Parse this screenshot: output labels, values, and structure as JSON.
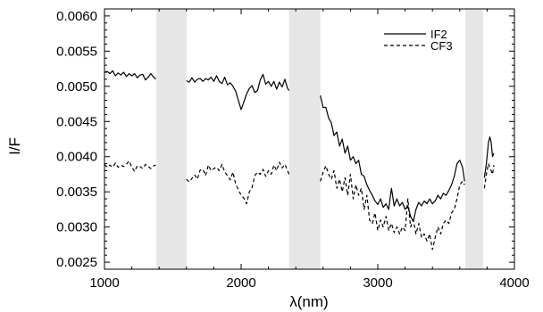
{
  "chart_data": {
    "type": "line",
    "title": "",
    "xlabel": "λ(nm)",
    "ylabel": "I/F",
    "xlim": [
      1000,
      4000
    ],
    "ylim": [
      0.0024,
      0.0061
    ],
    "xticks": [
      1000,
      2000,
      3000,
      4000
    ],
    "xtick_labels": [
      "1000",
      "2000",
      "3000",
      "4000"
    ],
    "yticks": [
      0.0025,
      0.003,
      0.0035,
      0.004,
      0.0045,
      0.005,
      0.0055,
      0.006
    ],
    "ytick_labels": [
      "0.0025",
      "0.0030",
      "0.0035",
      "0.0040",
      "0.0045",
      "0.0050",
      "0.0055",
      "0.0060"
    ],
    "grid": false,
    "legend_position": "top-right",
    "masked_bands": [
      [
        1380,
        1600
      ],
      [
        2350,
        2580
      ],
      [
        3640,
        3770
      ]
    ],
    "series": [
      {
        "name": "IF2",
        "style": "solid",
        "color": "#000000",
        "segments": [
          [
            [
              1000,
              0.0052
            ],
            [
              1020,
              0.00521
            ],
            [
              1040,
              0.00518
            ],
            [
              1060,
              0.00522
            ],
            [
              1080,
              0.00515
            ],
            [
              1100,
              0.00519
            ],
            [
              1120,
              0.00516
            ],
            [
              1140,
              0.0052
            ],
            [
              1160,
              0.00514
            ],
            [
              1180,
              0.00518
            ],
            [
              1200,
              0.00515
            ],
            [
              1220,
              0.00518
            ],
            [
              1240,
              0.00512
            ],
            [
              1260,
              0.00516
            ],
            [
              1280,
              0.00517
            ],
            [
              1300,
              0.00509
            ],
            [
              1320,
              0.00513
            ],
            [
              1340,
              0.00518
            ],
            [
              1360,
              0.00513
            ],
            [
              1375,
              0.0051
            ]
          ],
          [
            [
              1600,
              0.00508
            ],
            [
              1620,
              0.00506
            ],
            [
              1640,
              0.00512
            ],
            [
              1660,
              0.00506
            ],
            [
              1680,
              0.0051
            ],
            [
              1700,
              0.00511
            ],
            [
              1720,
              0.00507
            ],
            [
              1740,
              0.00511
            ],
            [
              1760,
              0.00509
            ],
            [
              1780,
              0.00513
            ],
            [
              1800,
              0.00507
            ],
            [
              1820,
              0.00515
            ],
            [
              1840,
              0.00507
            ],
            [
              1860,
              0.00504
            ],
            [
              1880,
              0.00513
            ],
            [
              1900,
              0.00502
            ],
            [
              1920,
              0.00505
            ],
            [
              1940,
              0.005
            ],
            [
              1960,
              0.00493
            ],
            [
              1980,
              0.0048
            ],
            [
              2000,
              0.00467
            ],
            [
              2020,
              0.00478
            ],
            [
              2040,
              0.00489
            ],
            [
              2060,
              0.00497
            ],
            [
              2080,
              0.00501
            ],
            [
              2100,
              0.00491
            ],
            [
              2120,
              0.00494
            ],
            [
              2140,
              0.00509
            ],
            [
              2160,
              0.00517
            ],
            [
              2180,
              0.00503
            ],
            [
              2200,
              0.00507
            ],
            [
              2220,
              0.005
            ],
            [
              2240,
              0.00507
            ],
            [
              2260,
              0.00496
            ],
            [
              2280,
              0.00506
            ],
            [
              2300,
              0.00499
            ],
            [
              2320,
              0.0051
            ],
            [
              2340,
              0.00497
            ],
            [
              2350,
              0.00494
            ]
          ],
          [
            [
              2580,
              0.00487
            ],
            [
              2600,
              0.0047
            ],
            [
              2620,
              0.0047
            ],
            [
              2640,
              0.00455
            ],
            [
              2660,
              0.00448
            ],
            [
              2680,
              0.0043
            ],
            [
              2700,
              0.00435
            ],
            [
              2720,
              0.00415
            ],
            [
              2740,
              0.00425
            ],
            [
              2760,
              0.00405
            ],
            [
              2780,
              0.00415
            ],
            [
              2800,
              0.00395
            ],
            [
              2820,
              0.004
            ],
            [
              2840,
              0.0039
            ],
            [
              2860,
              0.00395
            ],
            [
              2880,
              0.00375
            ],
            [
              2900,
              0.00372
            ],
            [
              2920,
              0.0036
            ],
            [
              2940,
              0.00352
            ],
            [
              2960,
              0.00345
            ],
            [
              2980,
              0.00337
            ],
            [
              3000,
              0.00332
            ],
            [
              3020,
              0.0034
            ],
            [
              3040,
              0.00328
            ],
            [
              3060,
              0.00333
            ],
            [
              3080,
              0.00325
            ],
            [
              3100,
              0.00355
            ],
            [
              3120,
              0.0033
            ],
            [
              3140,
              0.0034
            ],
            [
              3160,
              0.0033
            ],
            [
              3180,
              0.00335
            ],
            [
              3200,
              0.00325
            ],
            [
              3220,
              0.0033
            ],
            [
              3240,
              0.00315
            ],
            [
              3260,
              0.00308
            ],
            [
              3280,
              0.00325
            ],
            [
              3300,
              0.00335
            ],
            [
              3320,
              0.0033
            ],
            [
              3340,
              0.00337
            ],
            [
              3360,
              0.00333
            ],
            [
              3380,
              0.0034
            ],
            [
              3400,
              0.00333
            ],
            [
              3420,
              0.00337
            ],
            [
              3440,
              0.00345
            ],
            [
              3460,
              0.0034
            ],
            [
              3480,
              0.00348
            ],
            [
              3500,
              0.00345
            ],
            [
              3520,
              0.00352
            ],
            [
              3540,
              0.0036
            ],
            [
              3560,
              0.00372
            ],
            [
              3580,
              0.0039
            ],
            [
              3600,
              0.00395
            ],
            [
              3620,
              0.00385
            ],
            [
              3635,
              0.00365
            ]
          ],
          [
            [
              3780,
              0.0037
            ],
            [
              3795,
              0.0039
            ],
            [
              3810,
              0.0042
            ],
            [
              3820,
              0.00428
            ],
            [
              3830,
              0.0042
            ],
            [
              3840,
              0.004
            ],
            [
              3850,
              0.00405
            ]
          ]
        ]
      },
      {
        "name": "CF3",
        "style": "dashed",
        "color": "#000000",
        "segments": [
          [
            [
              1000,
              0.00389
            ],
            [
              1020,
              0.00385
            ],
            [
              1040,
              0.00388
            ],
            [
              1060,
              0.00385
            ],
            [
              1080,
              0.00391
            ],
            [
              1100,
              0.00385
            ],
            [
              1120,
              0.00388
            ],
            [
              1140,
              0.00386
            ],
            [
              1160,
              0.00389
            ],
            [
              1180,
              0.00394
            ],
            [
              1200,
              0.00385
            ],
            [
              1220,
              0.00379
            ],
            [
              1240,
              0.00387
            ],
            [
              1260,
              0.00386
            ],
            [
              1280,
              0.00383
            ],
            [
              1300,
              0.00389
            ],
            [
              1320,
              0.00386
            ],
            [
              1340,
              0.00383
            ],
            [
              1360,
              0.00387
            ],
            [
              1375,
              0.00388
            ]
          ],
          [
            [
              1600,
              0.00368
            ],
            [
              1620,
              0.00364
            ],
            [
              1640,
              0.00369
            ],
            [
              1660,
              0.00374
            ],
            [
              1680,
              0.00368
            ],
            [
              1700,
              0.00381
            ],
            [
              1720,
              0.00382
            ],
            [
              1740,
              0.00373
            ],
            [
              1760,
              0.00388
            ],
            [
              1780,
              0.0038
            ],
            [
              1800,
              0.00383
            ],
            [
              1820,
              0.00385
            ],
            [
              1840,
              0.0038
            ],
            [
              1860,
              0.00389
            ],
            [
              1880,
              0.00378
            ],
            [
              1900,
              0.00373
            ],
            [
              1920,
              0.00367
            ],
            [
              1940,
              0.00378
            ],
            [
              1960,
              0.00361
            ],
            [
              1980,
              0.00353
            ],
            [
              2000,
              0.00345
            ],
            [
              2020,
              0.00341
            ],
            [
              2040,
              0.00333
            ],
            [
              2060,
              0.0035
            ],
            [
              2080,
              0.00356
            ],
            [
              2100,
              0.00373
            ],
            [
              2120,
              0.00378
            ],
            [
              2140,
              0.00375
            ],
            [
              2160,
              0.00382
            ],
            [
              2180,
              0.00372
            ],
            [
              2200,
              0.0038
            ],
            [
              2220,
              0.00375
            ],
            [
              2240,
              0.00388
            ],
            [
              2260,
              0.0038
            ],
            [
              2280,
              0.00392
            ],
            [
              2300,
              0.00384
            ],
            [
              2320,
              0.00389
            ],
            [
              2340,
              0.0038
            ],
            [
              2350,
              0.00375
            ]
          ],
          [
            [
              2580,
              0.00365
            ],
            [
              2600,
              0.00378
            ],
            [
              2620,
              0.00387
            ],
            [
              2640,
              0.00375
            ],
            [
              2660,
              0.00368
            ],
            [
              2680,
              0.0038
            ],
            [
              2700,
              0.00355
            ],
            [
              2720,
              0.00368
            ],
            [
              2740,
              0.0035
            ],
            [
              2760,
              0.0037
            ],
            [
              2780,
              0.00345
            ],
            [
              2800,
              0.00375
            ],
            [
              2820,
              0.0034
            ],
            [
              2840,
              0.0036
            ],
            [
              2860,
              0.00345
            ],
            [
              2880,
              0.00355
            ],
            [
              2900,
              0.00325
            ],
            [
              2920,
              0.00345
            ],
            [
              2940,
              0.0031
            ],
            [
              2960,
              0.00305
            ],
            [
              2980,
              0.0032
            ],
            [
              3000,
              0.00295
            ],
            [
              3020,
              0.0031
            ],
            [
              3040,
              0.003
            ],
            [
              3060,
              0.00315
            ],
            [
              3080,
              0.00295
            ],
            [
              3100,
              0.00305
            ],
            [
              3120,
              0.00292
            ],
            [
              3140,
              0.003
            ],
            [
              3160,
              0.0029
            ],
            [
              3180,
              0.003
            ],
            [
              3200,
              0.00295
            ],
            [
              3220,
              0.0034
            ],
            [
              3240,
              0.003
            ],
            [
              3260,
              0.0031
            ],
            [
              3280,
              0.0029
            ],
            [
              3300,
              0.00305
            ],
            [
              3320,
              0.00285
            ],
            [
              3340,
              0.0029
            ],
            [
              3360,
              0.0028
            ],
            [
              3380,
              0.0029
            ],
            [
              3400,
              0.00268
            ],
            [
              3420,
              0.00285
            ],
            [
              3440,
              0.003
            ],
            [
              3460,
              0.0029
            ],
            [
              3480,
              0.00305
            ],
            [
              3500,
              0.0031
            ],
            [
              3520,
              0.00305
            ],
            [
              3540,
              0.0032
            ],
            [
              3560,
              0.00325
            ],
            [
              3580,
              0.0034
            ],
            [
              3600,
              0.0036
            ],
            [
              3620,
              0.00365
            ],
            [
              3635,
              0.0036
            ]
          ],
          [
            [
              3780,
              0.00355
            ],
            [
              3795,
              0.00375
            ],
            [
              3810,
              0.0039
            ],
            [
              3820,
              0.00385
            ],
            [
              3830,
              0.0038
            ],
            [
              3840,
              0.00375
            ],
            [
              3850,
              0.00388
            ]
          ]
        ]
      }
    ]
  }
}
